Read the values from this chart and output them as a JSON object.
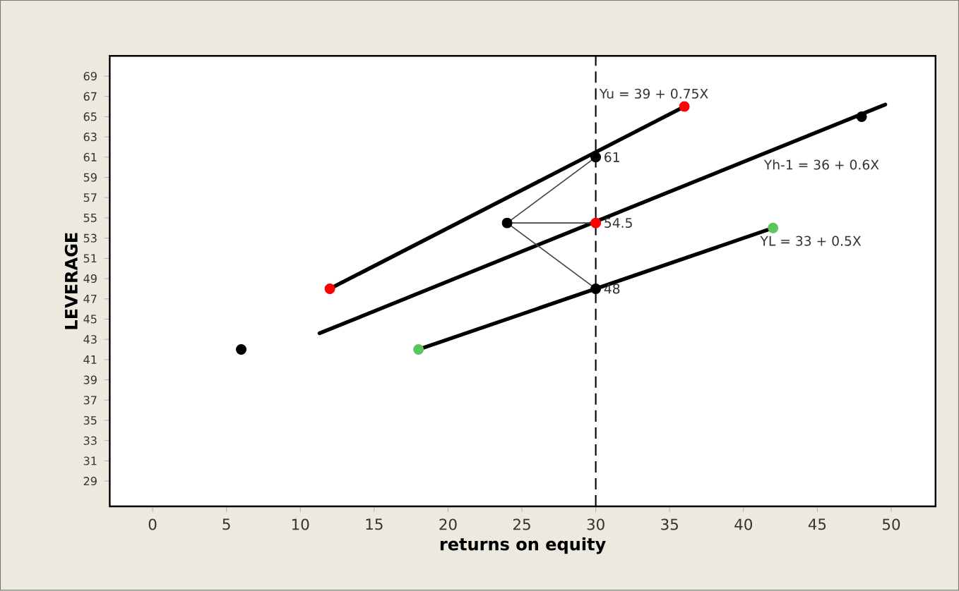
{
  "chart_data": {
    "type": "scatter",
    "xlabel": "returns on equity",
    "ylabel": "LEVERAGE",
    "xlim": [
      -2.9,
      53
    ],
    "ylim": [
      26.5,
      71
    ],
    "xticks": [
      0,
      5,
      10,
      15,
      20,
      25,
      30,
      35,
      40,
      45,
      50
    ],
    "yticks": [
      29,
      31,
      33,
      35,
      37,
      39,
      41,
      43,
      45,
      47,
      49,
      51,
      53,
      55,
      57,
      59,
      61,
      63,
      65,
      67,
      69
    ],
    "grid": false,
    "series": [
      {
        "type": "line",
        "name": "Yu = 39 + 0.75X",
        "marker": "none",
        "color": "#000000",
        "x": [
          12,
          36
        ],
        "values": [
          48,
          66
        ]
      },
      {
        "type": "line",
        "name": "Yh-1 = 36 + 0.6X",
        "marker": "none",
        "color": "#000000",
        "x": [
          11.3,
          49.6
        ],
        "values": [
          43.6,
          66.2
        ]
      },
      {
        "type": "line",
        "name": "YL = 33 + 0.5X",
        "marker": "none",
        "color": "#000000",
        "x": [
          18,
          42
        ],
        "values": [
          42,
          54
        ]
      },
      {
        "type": "line",
        "marker": "none",
        "color": "#404040",
        "x": [
          24,
          30
        ],
        "values": [
          54.5,
          61
        ]
      },
      {
        "type": "line",
        "marker": "none",
        "color": "#404040",
        "x": [
          24,
          30
        ],
        "values": [
          54.5,
          54.5
        ]
      },
      {
        "type": "line",
        "marker": "none",
        "color": "#404040",
        "x": [
          24,
          30
        ],
        "values": [
          54.5,
          48
        ]
      },
      {
        "marker": "circle",
        "color": "#000000",
        "x": [
          6,
          24,
          30,
          30,
          48
        ],
        "values": [
          42,
          54.5,
          61,
          48,
          65
        ],
        "value_labels": [
          null,
          null,
          "61",
          "48",
          null
        ]
      },
      {
        "marker": "circle",
        "color": "#ff0000",
        "x": [
          12,
          36,
          30
        ],
        "values": [
          48,
          66,
          54.5
        ],
        "value_labels": [
          null,
          null,
          "54.5"
        ]
      },
      {
        "marker": "circle",
        "color": "#5cc65c",
        "x": [
          18,
          42
        ],
        "values": [
          42,
          54
        ]
      }
    ],
    "ref_lines": [
      {
        "axis": "x",
        "value": 30,
        "line_style": "dashed",
        "color": "#000000"
      }
    ]
  }
}
